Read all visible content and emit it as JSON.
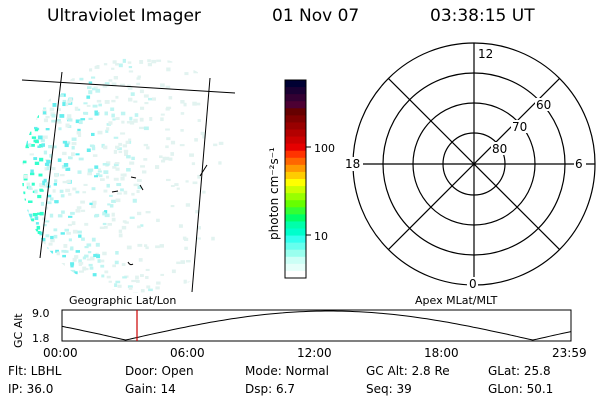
{
  "header": {
    "instrument": "Ultraviolet Imager",
    "date": "01 Nov 07",
    "time": "03:38:15 UT"
  },
  "colorbar": {
    "unit_label": "photon cm⁻²s⁻¹",
    "ticks": [
      "100",
      "10"
    ],
    "colors": [
      "#000033",
      "#1a0033",
      "#330033",
      "#4d0033",
      "#660000",
      "#800000",
      "#990000",
      "#b30000",
      "#cc0000",
      "#e60000",
      "#ff3300",
      "#ff6600",
      "#ff9900",
      "#ffcc00",
      "#ffff00",
      "#ccff00",
      "#99ff00",
      "#66ff00",
      "#33ff33",
      "#00ff66",
      "#00ffaa",
      "#00ffcc",
      "#33ffee",
      "#66ffee",
      "#99ffee",
      "#ccfff6",
      "#e6fffa",
      "#ffffff"
    ]
  },
  "polar": {
    "mlt_labels": {
      "top": "12",
      "left": "18",
      "right": "6",
      "bottom": "0"
    },
    "lat_labels": [
      "60",
      "70",
      "80"
    ]
  },
  "timeline": {
    "axis_label": "GC Alt",
    "y_ticks": [
      "9.0",
      "1.8"
    ],
    "left_header": "Geographic Lat/Lon",
    "right_header": "Apex MLat/MLT",
    "x_ticks": [
      "00:00",
      "06:00",
      "12:00",
      "18:00",
      "23:59"
    ],
    "current_marker_time": "03:38"
  },
  "status": {
    "flt": "Flt: LBHL",
    "door": "Door: Open",
    "mode": "Mode: Normal",
    "gc_alt": "GC Alt: 2.8 Re",
    "glat": "GLat:  25.8",
    "ip": "IP: 36.0",
    "gain": "Gain: 14",
    "dsp": "Dsp:     6.7",
    "seq": "Seq: 39",
    "glon": "GLon:  50.1"
  }
}
